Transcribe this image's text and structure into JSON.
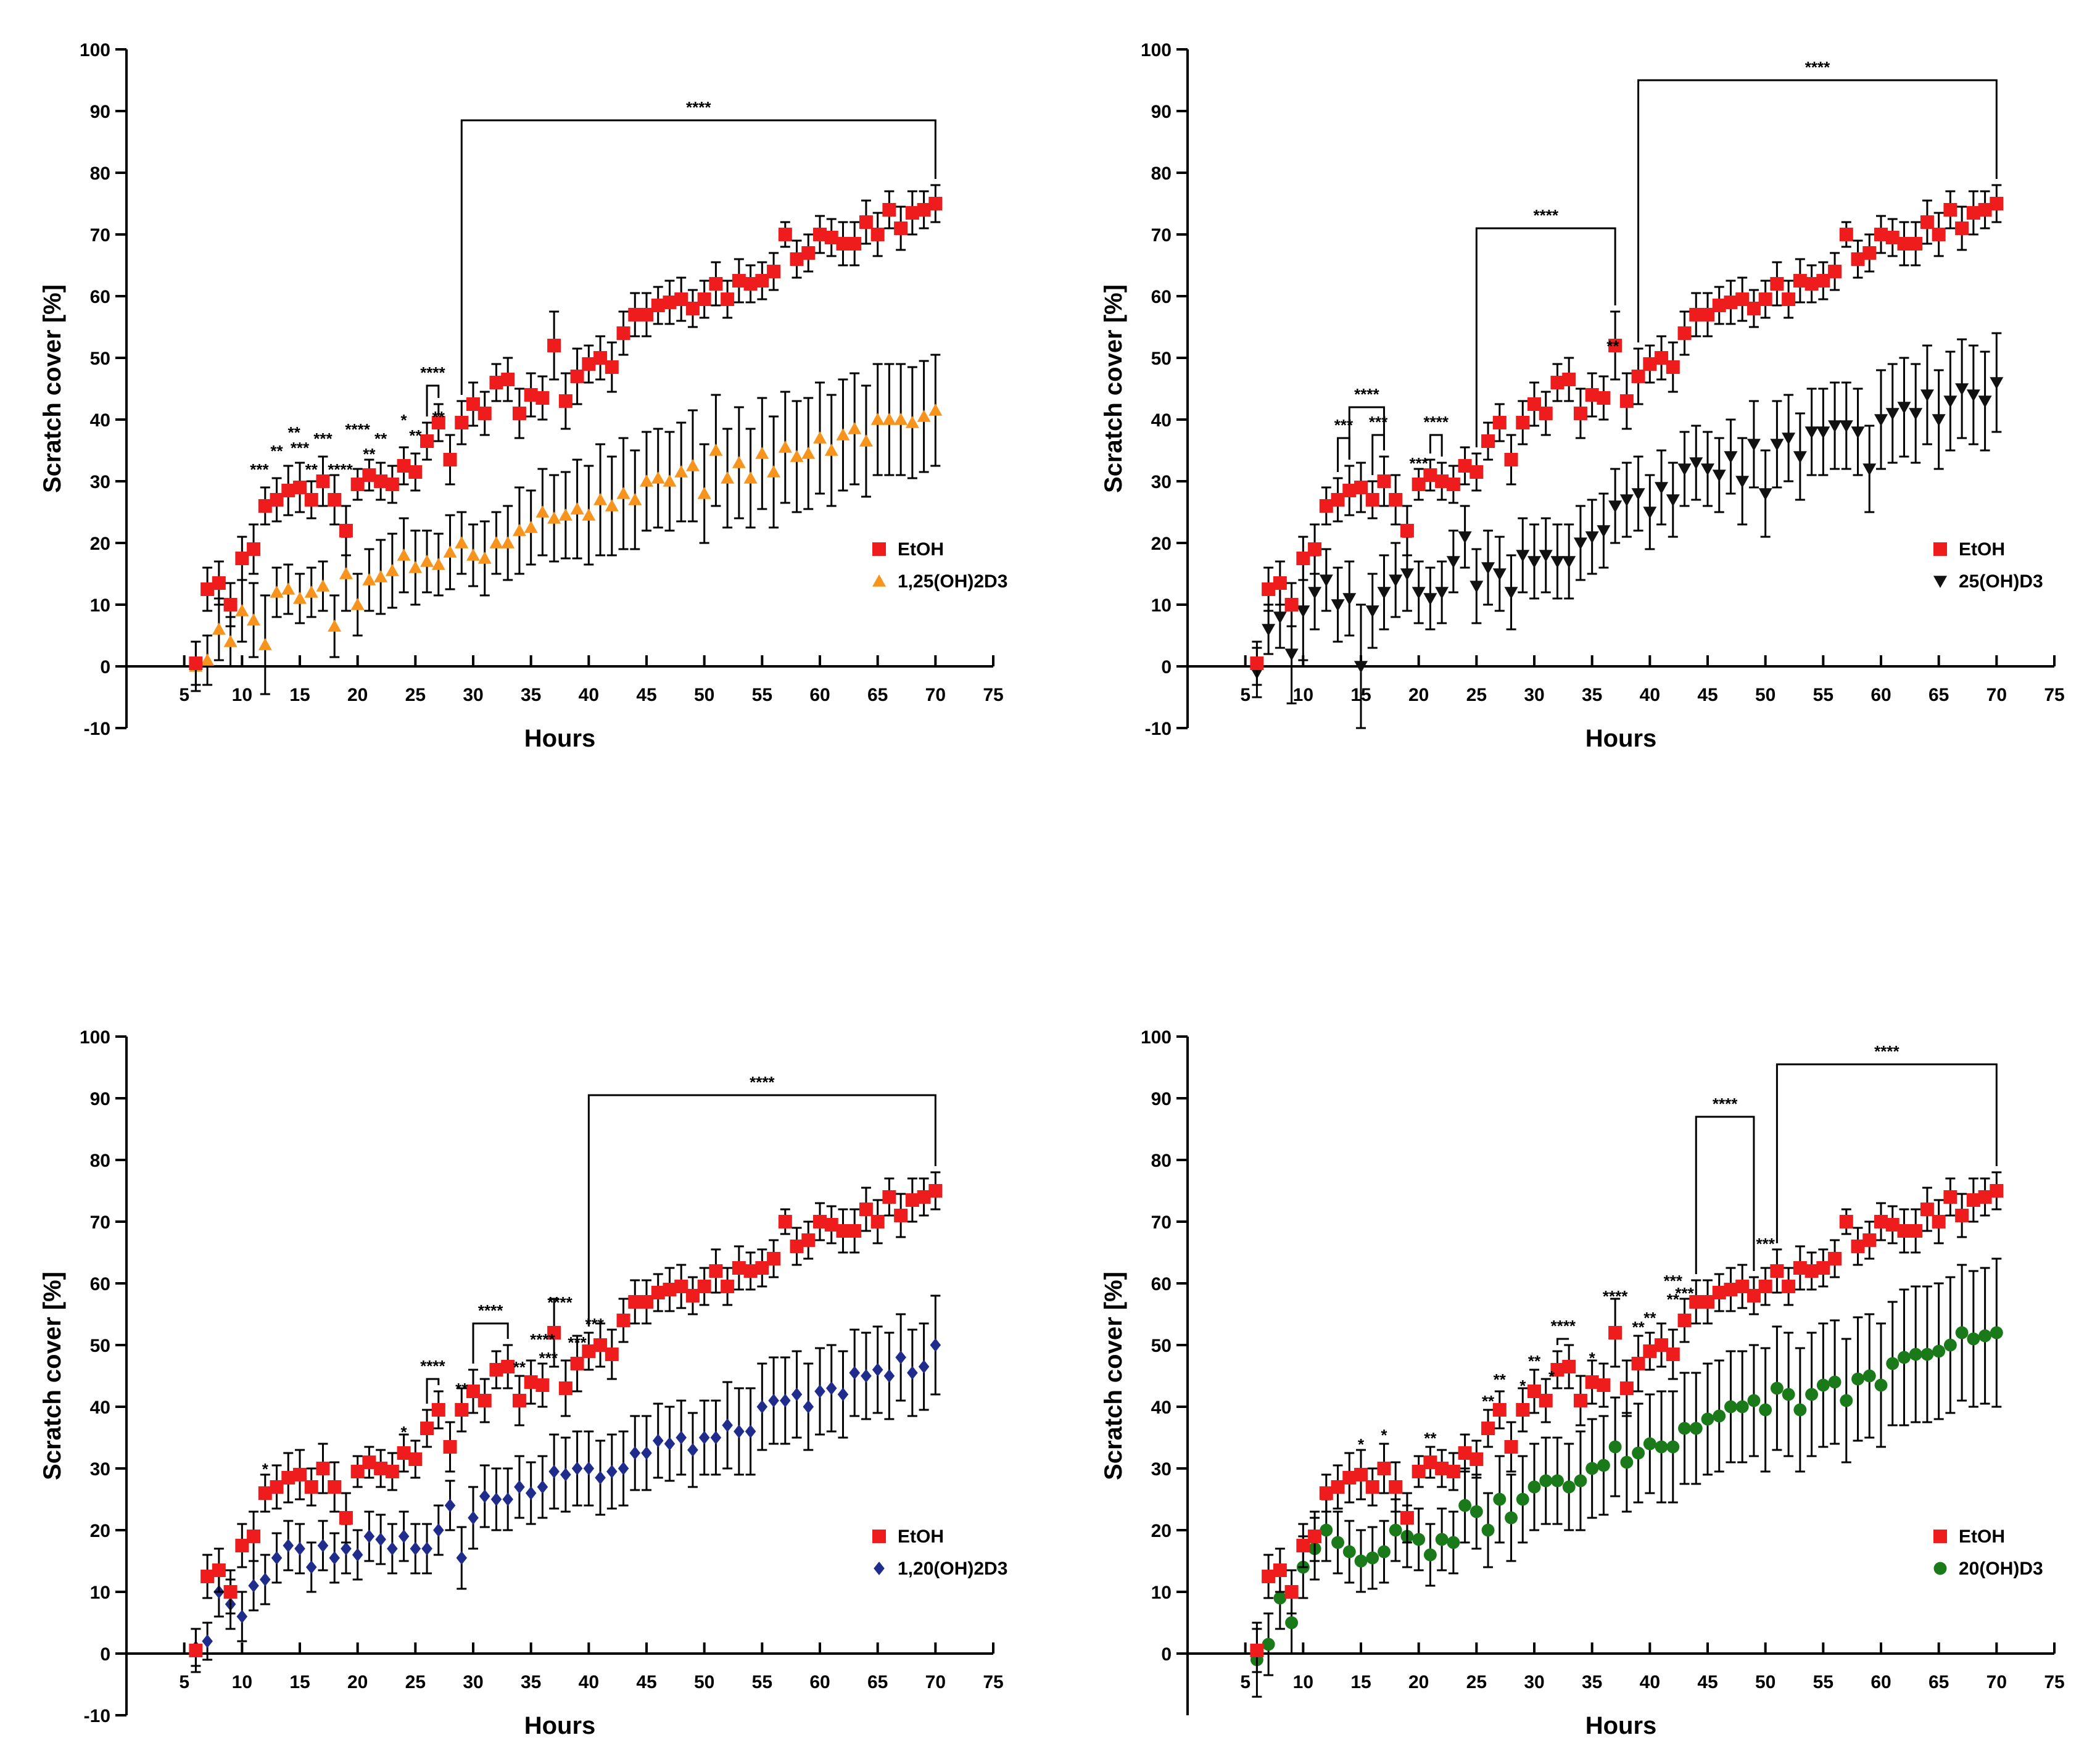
{
  "colors": {
    "etoh": "#ee1c1c",
    "ca": "#f7941d",
    "cb": "#111111",
    "cc": "#1f2c8c",
    "cd": "#1a7a1a"
  },
  "hours": [
    6,
    7,
    8,
    9,
    10,
    11,
    12,
    13,
    14,
    15,
    16,
    17,
    18,
    19,
    20,
    21,
    22,
    23,
    24,
    25,
    26,
    27,
    28,
    29,
    30,
    31,
    32,
    33,
    34,
    35,
    36,
    37,
    38,
    39,
    40,
    41,
    42,
    43,
    44,
    45,
    46,
    47,
    48,
    49,
    50,
    51,
    52,
    53,
    54,
    55,
    56,
    57,
    58,
    59,
    60,
    61,
    62,
    63,
    64,
    65,
    66,
    67,
    68,
    69,
    70
  ],
  "etoh": {
    "name": "EtOH",
    "marker": "square",
    "values": [
      0.5,
      12.5,
      13.5,
      10,
      17.5,
      19,
      26,
      27,
      28.5,
      29,
      27,
      30,
      27,
      22,
      29.5,
      31,
      30,
      29.5,
      32.5,
      31.5,
      36.5,
      39.5,
      33.5,
      39.5,
      42.5,
      41,
      46,
      46.5,
      41,
      44,
      43.5,
      52,
      43,
      47,
      49,
      50,
      48.5,
      54,
      57,
      57,
      58.5,
      59,
      59.5,
      58,
      59.5,
      62,
      59.5,
      62.5,
      62,
      62.5,
      64,
      70,
      66,
      67,
      70,
      69.5,
      68.5,
      68.5,
      72,
      70,
      74,
      71,
      73.5,
      74,
      75
    ],
    "errors": [
      3.5,
      3.5,
      3.5,
      3.5,
      3.5,
      4,
      3,
      3.5,
      4,
      4,
      3,
      4,
      4,
      4,
      2.5,
      2.5,
      3,
      3,
      3,
      3,
      3,
      3,
      4,
      3.5,
      3.5,
      3.5,
      3,
      3.5,
      4,
      3.5,
      3.5,
      5.5,
      4.5,
      4.5,
      3,
      3.5,
      4,
      3.5,
      3.5,
      3.5,
      3,
      3.5,
      3.5,
      3,
      3,
      3.5,
      3,
      3.5,
      3,
      3,
      3,
      2,
      3,
      3,
      3,
      3,
      3.5,
      3.5,
      3.5,
      3.5,
      3,
      3.5,
      3.5,
      3,
      3
    ]
  },
  "chart_data": [
    {
      "type": "scatter",
      "title": "",
      "xlabel": "Hours",
      "ylabel": "Scratch cover [%]",
      "xlim": [
        0,
        75
      ],
      "ylim": [
        -10,
        100
      ],
      "x_ticks": [
        "5",
        "10",
        "15",
        "20",
        "25",
        "30",
        "35",
        "40",
        "45",
        "50",
        "55",
        "60",
        "65",
        "70",
        "75"
      ],
      "y_ticks": [
        "-10",
        "0",
        "10",
        "20",
        "30",
        "40",
        "50",
        "60",
        "70",
        "80",
        "90",
        "100"
      ],
      "legend": [
        "EtOH",
        "1,25(OH)2D3"
      ],
      "legend_position": "right-middle",
      "treatment": {
        "name": "1,25(OH)2D3",
        "marker": "triangle-up",
        "values": [
          0,
          1,
          6,
          4,
          9,
          7.5,
          3.5,
          12,
          12.5,
          11,
          12,
          13,
          6.5,
          15,
          10,
          14,
          14.5,
          15.5,
          18,
          16,
          17,
          16.5,
          18.5,
          20,
          18,
          17.5,
          20,
          20,
          22,
          22.5,
          25,
          24,
          24.5,
          25.5,
          24.5,
          27,
          26,
          28,
          27,
          30,
          30.5,
          30,
          31.5,
          32.5,
          28,
          35,
          30.5,
          33,
          30.5,
          34.5,
          31.5,
          35.5,
          34,
          34.5,
          37,
          35,
          37.5,
          38.5,
          36.5,
          40,
          40,
          40,
          39.5,
          40.5,
          41.5
        ],
        "errors": [
          4,
          4,
          5,
          4,
          5,
          6,
          8,
          4,
          4,
          4,
          4,
          4,
          5,
          6,
          5,
          5,
          6,
          6,
          6,
          6,
          5,
          5,
          6,
          5,
          5,
          6,
          5,
          6,
          7,
          6,
          7,
          7,
          7,
          8,
          8,
          9,
          8,
          9,
          8,
          8,
          8,
          8,
          8,
          9,
          8,
          9,
          8,
          9,
          8,
          9,
          9,
          9,
          9,
          9,
          9,
          9,
          9,
          9,
          9,
          9,
          9,
          9,
          9,
          9,
          9
        ]
      },
      "annotations": [
        {
          "label": "***",
          "x": 11.5,
          "y": 32
        },
        {
          "label": "**",
          "x": 13,
          "y": 35
        },
        {
          "label": "**",
          "x": 14.5,
          "y": 38
        },
        {
          "label": "***",
          "x": 15,
          "y": 35.5
        },
        {
          "label": "***",
          "x": 17,
          "y": 37
        },
        {
          "label": "**",
          "x": 16,
          "y": 32
        },
        {
          "label": "****",
          "x": 18.5,
          "y": 32
        },
        {
          "label": "****",
          "x": 20,
          "y": 38.5
        },
        {
          "label": "**",
          "x": 21,
          "y": 34.5
        },
        {
          "label": "**",
          "x": 22,
          "y": 37
        },
        {
          "label": "*",
          "x": 24,
          "y": 40
        },
        {
          "label": "**",
          "x": 25,
          "y": 37.5
        },
        {
          "label": "**",
          "x": 27,
          "y": 40.5
        }
      ],
      "brackets": [
        {
          "x1": 26,
          "x2": 27,
          "label": "****",
          "h": 45.5
        },
        {
          "x1": 29,
          "x2": 70,
          "label": "****",
          "h": 88.5
        }
      ]
    },
    {
      "type": "scatter",
      "title": "",
      "xlabel": "Hours",
      "ylabel": "Scratch cover [%]",
      "xlim": [
        0,
        75
      ],
      "ylim": [
        -10,
        100
      ],
      "x_ticks": [
        "5",
        "10",
        "15",
        "20",
        "25",
        "30",
        "35",
        "40",
        "45",
        "50",
        "55",
        "60",
        "65",
        "70",
        "75"
      ],
      "y_ticks": [
        "-10",
        "0",
        "10",
        "20",
        "30",
        "40",
        "50",
        "60",
        "70",
        "80",
        "90",
        "100"
      ],
      "legend": [
        "EtOH",
        "25(OH)D3"
      ],
      "legend_position": "right-middle",
      "treatment": {
        "name": "25(OH)D3",
        "marker": "triangle-down",
        "values": [
          -1,
          6,
          8,
          2,
          9,
          12,
          14,
          10,
          11,
          0,
          9,
          12,
          14,
          15,
          12,
          11,
          12,
          17,
          21,
          13,
          16,
          15,
          12,
          18,
          17,
          18,
          17,
          17,
          20,
          21,
          22,
          26,
          27,
          28,
          25,
          29,
          27,
          32,
          33,
          32,
          31,
          34,
          30,
          36,
          28,
          36,
          37,
          34,
          38,
          38,
          39,
          39,
          38,
          32,
          40,
          41,
          42,
          41,
          44,
          40,
          43,
          45,
          44,
          43,
          46
        ],
        "errors": [
          4,
          4,
          5,
          8,
          8,
          6,
          5,
          6,
          6,
          10,
          6,
          6,
          6,
          6,
          5,
          5,
          5,
          5,
          5,
          6,
          6,
          6,
          6,
          6,
          6,
          6,
          6,
          6,
          6,
          6,
          6,
          6,
          6,
          6,
          6,
          6,
          6,
          6,
          6,
          6,
          6,
          6,
          7,
          7,
          7,
          7,
          7,
          7,
          7,
          7,
          7,
          7,
          7,
          7,
          8,
          8,
          8,
          8,
          8,
          8,
          8,
          8,
          8,
          8,
          8
        ]
      },
      "annotations": [
        {
          "label": "***",
          "x": 20,
          "y": 33
        },
        {
          "label": "**",
          "x": 36.8,
          "y": 52
        }
      ],
      "brackets": [
        {
          "x1": 13,
          "x2": 14,
          "label": "***",
          "h": 37
        },
        {
          "x1": 16,
          "x2": 17,
          "label": "***",
          "h": 37.5
        },
        {
          "x1": 14,
          "x2": 17,
          "label": "****",
          "h": 42
        },
        {
          "x1": 21,
          "x2": 22,
          "label": "****",
          "h": 37.5
        },
        {
          "x1": 25,
          "x2": 37,
          "label": "****",
          "h": 71
        },
        {
          "x1": 39,
          "x2": 70,
          "label": "****",
          "h": 95
        }
      ]
    },
    {
      "type": "scatter",
      "title": "",
      "xlabel": "Hours",
      "ylabel": "Scratch cover [%]",
      "xlim": [
        0,
        75
      ],
      "ylim": [
        -10,
        100
      ],
      "x_ticks": [
        "5",
        "10",
        "15",
        "20",
        "25",
        "30",
        "35",
        "40",
        "45",
        "50",
        "55",
        "60",
        "65",
        "70",
        "75"
      ],
      "y_ticks": [
        "-10",
        "0",
        "10",
        "20",
        "30",
        "40",
        "50",
        "60",
        "70",
        "80",
        "90",
        "100"
      ],
      "legend": [
        "EtOH",
        "1,20(OH)2D3"
      ],
      "legend_position": "right-middle",
      "treatment": {
        "name": "1,20(OH)2D3",
        "marker": "diamond",
        "values": [
          1,
          2,
          10,
          8,
          6,
          11,
          12,
          15.5,
          17.5,
          17,
          14,
          17.5,
          15.5,
          17,
          16,
          19,
          18.5,
          17,
          19,
          17,
          17,
          20,
          24,
          15.5,
          22,
          25.5,
          25,
          25,
          27,
          26,
          27,
          29.5,
          29,
          30,
          30,
          28.5,
          29.5,
          30,
          32.5,
          32.5,
          34.5,
          34,
          35,
          33,
          35,
          35,
          37,
          36,
          36,
          40,
          41,
          41,
          42,
          40,
          42.5,
          43,
          42,
          45.5,
          45,
          46,
          45,
          48,
          45.5,
          46.5,
          50
        ],
        "errors": [
          3,
          3,
          4,
          4,
          4,
          4,
          4,
          4,
          4,
          4,
          4,
          4,
          4,
          4,
          4,
          4,
          4,
          4,
          4,
          4,
          4,
          4,
          4,
          5,
          5,
          5,
          5,
          5,
          5,
          5,
          5,
          6,
          6,
          6,
          6,
          6,
          6,
          6,
          6,
          6,
          6,
          6,
          6,
          6,
          6,
          6,
          7,
          7,
          7,
          7,
          7,
          7,
          7,
          7,
          7,
          7,
          7,
          7,
          7,
          7,
          7,
          7,
          7,
          7,
          8
        ]
      },
      "annotations": [
        {
          "label": "*",
          "x": 12,
          "y": 30
        },
        {
          "label": "*",
          "x": 24,
          "y": 36
        },
        {
          "label": "**",
          "x": 29,
          "y": 43
        },
        {
          "label": "**",
          "x": 34,
          "y": 46.5
        },
        {
          "label": "****",
          "x": 36,
          "y": 51
        },
        {
          "label": "****",
          "x": 37.5,
          "y": 57
        },
        {
          "label": "***",
          "x": 36.5,
          "y": 48
        },
        {
          "label": "***",
          "x": 39,
          "y": 50.5
        },
        {
          "label": "***",
          "x": 40.5,
          "y": 53.5
        }
      ],
      "brackets": [
        {
          "x1": 26,
          "x2": 27,
          "label": "****",
          "h": 44.5
        },
        {
          "x1": 30,
          "x2": 33,
          "label": "****",
          "h": 53.5
        },
        {
          "x1": 40,
          "x2": 70,
          "label": "****",
          "h": 90.5
        }
      ]
    },
    {
      "type": "scatter",
      "title": "",
      "xlabel": "Hours",
      "ylabel": "Scratch cover [%]",
      "xlim": [
        0,
        75
      ],
      "ylim": [
        -10,
        100
      ],
      "x_ticks": [
        "5",
        "10",
        "15",
        "20",
        "25",
        "30",
        "35",
        "40",
        "45",
        "50",
        "55",
        "60",
        "65",
        "70",
        "75"
      ],
      "y_ticks": [
        "0",
        "10",
        "20",
        "30",
        "40",
        "50",
        "60",
        "70",
        "80",
        "90",
        "100"
      ],
      "legend": [
        "EtOH",
        "20(OH)D3"
      ],
      "legend_position": "right-middle",
      "treatment": {
        "name": "20(OH)D3",
        "marker": "circle",
        "values": [
          -1,
          1.5,
          9,
          5,
          14,
          17,
          20,
          18,
          16.5,
          15,
          15.5,
          16.5,
          20,
          19,
          18.5,
          16,
          18.5,
          18,
          24,
          23,
          20,
          25,
          22,
          25,
          27,
          28,
          28,
          27,
          28,
          30,
          30.5,
          33.5,
          31,
          32.5,
          34,
          33.5,
          33.5,
          36.5,
          36.5,
          38,
          38.5,
          40,
          40,
          41,
          39.5,
          43,
          42,
          39.5,
          42,
          43.5,
          44,
          41,
          44.5,
          45,
          43.5,
          47,
          48,
          48.5,
          48.5,
          49,
          50,
          52,
          51,
          51.5,
          52
        ],
        "errors": [
          6,
          5,
          5,
          5,
          5,
          5,
          5,
          5,
          5,
          5,
          5,
          5,
          5,
          5,
          5,
          5,
          5,
          5,
          6,
          6,
          6,
          7,
          7,
          7,
          7,
          7,
          7,
          7,
          8,
          8,
          8,
          8,
          8,
          8,
          8,
          9,
          9,
          9,
          9,
          9,
          9,
          9,
          9,
          9,
          10,
          10,
          10,
          10,
          10,
          10,
          10,
          10,
          10,
          10,
          10,
          10,
          11,
          11,
          11,
          11,
          11,
          11,
          11,
          11,
          12
        ]
      },
      "annotations": [
        {
          "label": "*",
          "x": 15,
          "y": 34
        },
        {
          "label": "*",
          "x": 17,
          "y": 35.5
        },
        {
          "label": "**",
          "x": 21,
          "y": 35
        },
        {
          "label": "**",
          "x": 26,
          "y": 41
        },
        {
          "label": "**",
          "x": 27,
          "y": 44.5
        },
        {
          "label": "*",
          "x": 29,
          "y": 43.5
        },
        {
          "label": "**",
          "x": 30,
          "y": 47.5
        },
        {
          "label": "*",
          "x": 31.5,
          "y": 45
        },
        {
          "label": "*",
          "x": 35,
          "y": 48
        },
        {
          "label": "****",
          "x": 37,
          "y": 58
        },
        {
          "label": "**",
          "x": 39,
          "y": 53
        },
        {
          "label": "**",
          "x": 40,
          "y": 54.5
        },
        {
          "label": "**",
          "x": 42,
          "y": 57.5
        },
        {
          "label": "***",
          "x": 42,
          "y": 60.5
        },
        {
          "label": "***",
          "x": 43,
          "y": 58.5
        },
        {
          "label": "***",
          "x": 50,
          "y": 66.5
        }
      ],
      "brackets": [
        {
          "x1": 32,
          "x2": 33,
          "label": "****",
          "h": 51
        },
        {
          "x1": 44,
          "x2": 49,
          "label": "****",
          "h": 87
        },
        {
          "x1": 51,
          "x2": 70,
          "label": "****",
          "h": 95.5
        }
      ]
    }
  ]
}
